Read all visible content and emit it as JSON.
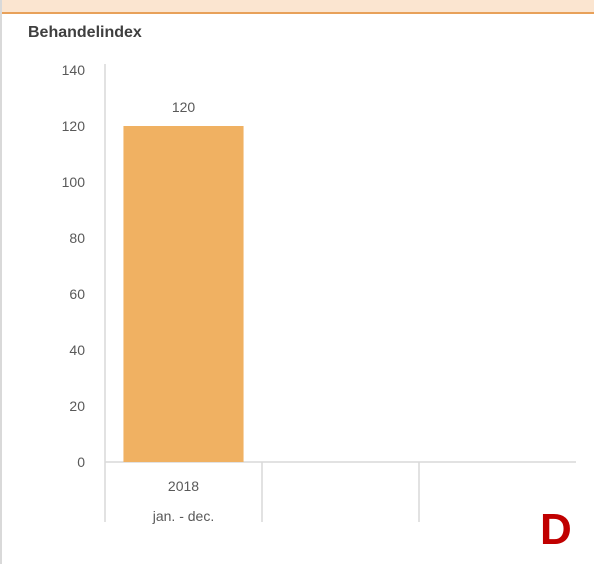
{
  "chart_data": {
    "type": "bar",
    "title": "Behandelindex",
    "categories": [
      {
        "line1": "2018",
        "line2": "jan. - dec."
      },
      {
        "line1": "",
        "line2": ""
      },
      {
        "line1": "",
        "line2": ""
      }
    ],
    "values": [
      120,
      null,
      null
    ],
    "data_labels": [
      "120",
      "",
      ""
    ],
    "ylim": [
      0,
      140
    ],
    "yticks": [
      "0",
      "20",
      "40",
      "60",
      "80",
      "100",
      "120",
      "140"
    ],
    "grid": false,
    "legend": "none",
    "colors": {
      "bar": "#f0b162",
      "axis": "#d9d9d9",
      "tick_text": "#595959"
    }
  },
  "panel": {
    "corner_label": "D"
  }
}
